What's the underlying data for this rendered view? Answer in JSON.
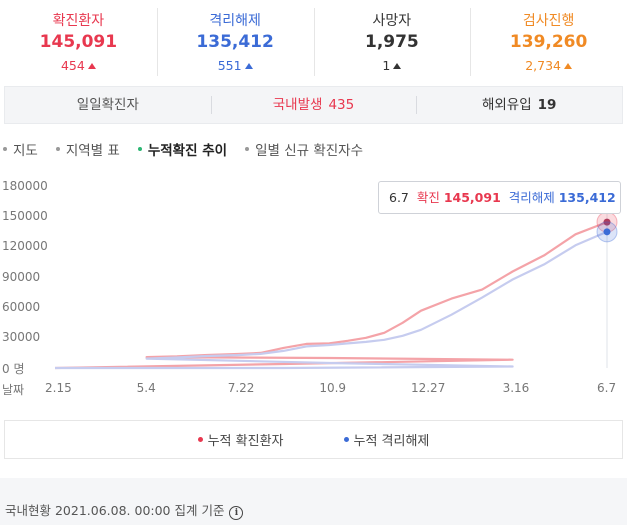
{
  "stats": [
    {
      "label": "확진환자",
      "value": "145,091",
      "delta": "454",
      "color": "#e8384f"
    },
    {
      "label": "격리해제",
      "value": "135,412",
      "delta": "551",
      "color": "#3b6bd6"
    },
    {
      "label": "사망자",
      "value": "1,975",
      "delta": "1",
      "color": "#333333"
    },
    {
      "label": "검사진행",
      "value": "139,260",
      "delta": "2,734",
      "color": "#f08a24"
    }
  ],
  "daily": {
    "total_label": "일일확진자",
    "domestic_label": "국내발생",
    "domestic_value": "435",
    "overseas_label": "해외유입",
    "overseas_value": "19"
  },
  "tabs": [
    {
      "label": "지도",
      "active": false
    },
    {
      "label": "지역별 표",
      "active": false
    },
    {
      "label": "누적확진 추이",
      "active": true
    },
    {
      "label": "일별 신규 확진자수",
      "active": false
    }
  ],
  "tooltip": {
    "date": "6.7",
    "confirmed_label": "확진",
    "confirmed_value": "145,091",
    "released_label": "격리해제",
    "released_value": "135,412"
  },
  "legend": {
    "confirmed": "누적 확진환자",
    "released": "누적 격리해제"
  },
  "footer": {
    "note": "국내현황 2021.06.08. 00:00 집계 기준"
  },
  "icons": {
    "info": "info-circle-icon"
  },
  "colors": {
    "confirmed": "#f4a3a8",
    "released": "#c6ccef",
    "confirmed_marker": "#b03a5a",
    "released_marker": "#3b6bd6"
  },
  "chart_data": {
    "type": "line",
    "x_tick_labels": [
      "2.15",
      "5.4",
      "7.22",
      "10.9",
      "12.27",
      "3.16",
      "6.7"
    ],
    "y_tick_labels": [
      "180000",
      "150000",
      "120000",
      "90000",
      "60000",
      "30000",
      "0 명"
    ],
    "x_axis_label": "날짜",
    "ylim": [
      0,
      180000
    ],
    "series": [
      {
        "name": "누적 확진환자",
        "x": [
          "2.15",
          "3.1",
          "3.16",
          "4.1",
          "5.4",
          "6.1",
          "7.1",
          "7.22",
          "8.15",
          "9.1",
          "10.1",
          "10.9",
          "11.1",
          "11.20",
          "12.1",
          "12.15",
          "12.27",
          "1.10",
          "2.1",
          "3.16",
          "4.15",
          "5.15",
          "6.7"
        ],
        "values": [
          0,
          4000,
          8300,
          9900,
          10800,
          11500,
          12900,
          13900,
          15000,
          20000,
          24000,
          24500,
          27000,
          30000,
          35000,
          45000,
          57000,
          69000,
          78000,
          96000,
          112000,
          133000,
          145091
        ]
      },
      {
        "name": "누적 격리해제",
        "x": [
          "2.15",
          "3.1",
          "3.16",
          "4.1",
          "5.4",
          "6.1",
          "7.1",
          "7.22",
          "8.15",
          "9.1",
          "10.1",
          "10.9",
          "11.1",
          "11.20",
          "12.1",
          "12.15",
          "12.27",
          "1.10",
          "2.1",
          "3.16",
          "4.15",
          "5.15",
          "6.7"
        ],
        "values": [
          0,
          30,
          1500,
          5000,
          9300,
          10400,
          11900,
          12800,
          14000,
          17000,
          21500,
          22900,
          24500,
          26000,
          28000,
          32000,
          38000,
          53000,
          70000,
          88000,
          103000,
          122000,
          135412
        ]
      }
    ]
  }
}
